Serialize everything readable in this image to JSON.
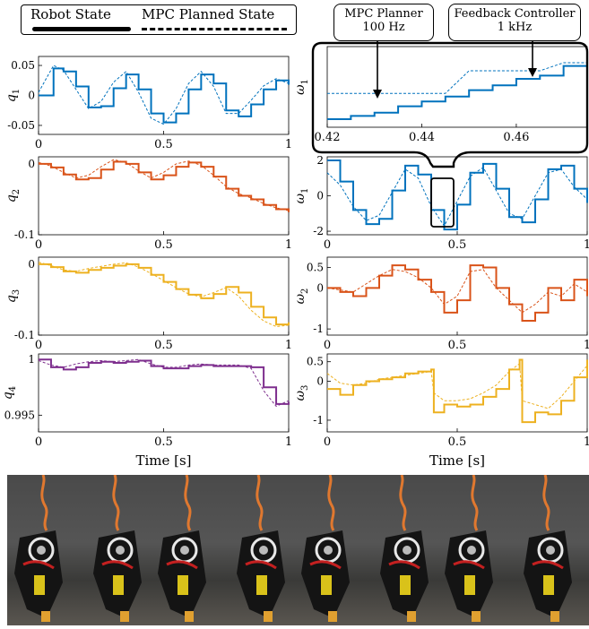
{
  "legend": {
    "robot_state": "Robot State",
    "mpc_planned_state": "MPC Planned State"
  },
  "callouts": {
    "mpc_planner": {
      "line1": "MPC Planner",
      "line2": "100 Hz"
    },
    "feedback_controller": {
      "line1": "Feedback Controller",
      "line2": "1 kHz"
    }
  },
  "colors": {
    "blue": "#0072BD",
    "orange": "#D95319",
    "yellow": "#EDB120",
    "purple": "#7E2F8E"
  },
  "chart_data": [
    {
      "id": "q1",
      "type": "line",
      "ylabel": "q_1",
      "color": "blue",
      "xlim": [
        0,
        1
      ],
      "ylim": [
        -0.065,
        0.065
      ],
      "xticks": [
        "0",
        "0.5",
        "1"
      ],
      "yticks": [
        {
          "v": 0.05,
          "t": "0.05"
        },
        {
          "v": 0,
          "t": "0"
        },
        {
          "v": -0.05,
          "t": "-0.05"
        }
      ],
      "xlabel": "",
      "x": [
        0,
        0.06,
        0.1,
        0.15,
        0.2,
        0.25,
        0.3,
        0.35,
        0.4,
        0.45,
        0.5,
        0.55,
        0.6,
        0.65,
        0.7,
        0.75,
        0.8,
        0.85,
        0.9,
        0.95,
        1.0
      ],
      "series": [
        {
          "name": "Robot State",
          "values": [
            0.0,
            0.045,
            0.04,
            0.015,
            -0.02,
            -0.018,
            0.012,
            0.035,
            0.01,
            -0.03,
            -0.045,
            -0.03,
            0.01,
            0.035,
            0.02,
            -0.025,
            -0.035,
            -0.015,
            0.01,
            0.025,
            0.018
          ]
        },
        {
          "name": "MPC Planned State",
          "values": [
            0.005,
            0.05,
            0.042,
            0.01,
            -0.022,
            -0.01,
            0.022,
            0.04,
            0.005,
            -0.038,
            -0.048,
            -0.022,
            0.02,
            0.04,
            0.015,
            -0.03,
            -0.03,
            -0.008,
            0.016,
            0.028,
            0.02
          ]
        }
      ]
    },
    {
      "id": "q2",
      "type": "line",
      "ylabel": "q_2",
      "color": "orange",
      "xlim": [
        0,
        1
      ],
      "ylim": [
        -0.1,
        0.01
      ],
      "xticks": [
        "0",
        "0.5",
        "1"
      ],
      "yticks": [
        {
          "v": 0,
          "t": "0"
        },
        {
          "v": -0.1,
          "t": "-0.1"
        }
      ],
      "xlabel": "",
      "x": [
        0,
        0.05,
        0.1,
        0.15,
        0.2,
        0.25,
        0.3,
        0.35,
        0.4,
        0.45,
        0.5,
        0.55,
        0.6,
        0.65,
        0.7,
        0.75,
        0.8,
        0.85,
        0.9,
        0.95,
        1.0
      ],
      "series": [
        {
          "name": "Robot State",
          "values": [
            0.0,
            -0.005,
            -0.015,
            -0.022,
            -0.02,
            -0.008,
            0.003,
            0.0,
            -0.012,
            -0.022,
            -0.016,
            -0.004,
            0.002,
            -0.004,
            -0.018,
            -0.035,
            -0.045,
            -0.05,
            -0.058,
            -0.064,
            -0.068
          ]
        },
        {
          "name": "MPC Planned State",
          "values": [
            0.002,
            -0.003,
            -0.012,
            -0.02,
            -0.016,
            -0.004,
            0.006,
            0.002,
            -0.01,
            -0.02,
            -0.012,
            0.0,
            0.004,
            -0.002,
            -0.016,
            -0.032,
            -0.042,
            -0.048,
            -0.056,
            -0.062,
            -0.066
          ]
        }
      ]
    },
    {
      "id": "q3",
      "type": "line",
      "ylabel": "q_3",
      "color": "yellow",
      "xlim": [
        0,
        1
      ],
      "ylim": [
        -0.1,
        0.01
      ],
      "xticks": [
        "0",
        "0.5",
        "1"
      ],
      "yticks": [
        {
          "v": 0,
          "t": "0"
        },
        {
          "v": -0.1,
          "t": "-0.1"
        }
      ],
      "xlabel": "",
      "x": [
        0,
        0.05,
        0.1,
        0.15,
        0.2,
        0.25,
        0.3,
        0.35,
        0.4,
        0.45,
        0.5,
        0.55,
        0.6,
        0.65,
        0.7,
        0.75,
        0.8,
        0.85,
        0.9,
        0.95,
        1.0
      ],
      "series": [
        {
          "name": "Robot State",
          "values": [
            0.0,
            -0.004,
            -0.01,
            -0.012,
            -0.008,
            -0.005,
            -0.002,
            0.0,
            -0.005,
            -0.015,
            -0.025,
            -0.035,
            -0.043,
            -0.048,
            -0.042,
            -0.032,
            -0.04,
            -0.06,
            -0.075,
            -0.085,
            -0.082
          ]
        },
        {
          "name": "MPC Planned State",
          "values": [
            0.003,
            -0.002,
            -0.008,
            -0.01,
            -0.006,
            -0.003,
            0.0,
            0.002,
            -0.004,
            -0.013,
            -0.023,
            -0.033,
            -0.042,
            -0.046,
            -0.04,
            -0.033,
            -0.045,
            -0.065,
            -0.08,
            -0.088,
            -0.086
          ]
        }
      ]
    },
    {
      "id": "q4",
      "type": "line",
      "ylabel": "q_4",
      "color": "purple",
      "xlim": [
        0,
        1
      ],
      "ylim": [
        0.9935,
        1.0005
      ],
      "xticks": [
        "0",
        "0.5",
        "1"
      ],
      "yticks": [
        {
          "v": 1.0,
          "t": "1"
        },
        {
          "v": 0.995,
          "t": "0.995"
        }
      ],
      "xlabel": "Time [s]",
      "x": [
        0,
        0.05,
        0.1,
        0.15,
        0.2,
        0.25,
        0.3,
        0.35,
        0.4,
        0.45,
        0.5,
        0.55,
        0.6,
        0.65,
        0.7,
        0.75,
        0.8,
        0.85,
        0.9,
        0.95,
        1.0
      ],
      "series": [
        {
          "name": "Robot State",
          "values": [
            1.0,
            0.9993,
            0.9991,
            0.9993,
            0.9997,
            0.9998,
            0.9997,
            0.9998,
            0.9999,
            0.9994,
            0.9992,
            0.9992,
            0.9994,
            0.9995,
            0.9994,
            0.9994,
            0.9994,
            0.9993,
            0.9975,
            0.996,
            0.9962
          ]
        },
        {
          "name": "MPC Planned State",
          "values": [
            0.9999,
            0.9995,
            0.9993,
            0.9996,
            0.9998,
            0.9999,
            0.9998,
            0.9999,
            1.0,
            0.9996,
            0.9993,
            0.9993,
            0.9995,
            0.9996,
            0.9995,
            0.9995,
            0.9995,
            0.9992,
            0.9972,
            0.9958,
            0.9963
          ]
        }
      ]
    },
    {
      "id": "w1",
      "type": "line",
      "ylabel": "ω_1",
      "color": "blue",
      "xlim": [
        0,
        1
      ],
      "ylim": [
        -2.2,
        2.2
      ],
      "xticks": [
        "0",
        "0.5",
        "1"
      ],
      "yticks": [
        {
          "v": 2,
          "t": "2"
        },
        {
          "v": 0,
          "t": "0"
        },
        {
          "v": -2,
          "t": "-2"
        }
      ],
      "xlabel": "",
      "x": [
        0,
        0.05,
        0.1,
        0.15,
        0.2,
        0.25,
        0.3,
        0.35,
        0.4,
        0.45,
        0.5,
        0.55,
        0.6,
        0.65,
        0.7,
        0.75,
        0.8,
        0.85,
        0.9,
        0.95,
        1.0
      ],
      "series": [
        {
          "name": "Robot State",
          "values": [
            2.0,
            0.8,
            -0.8,
            -1.6,
            -1.3,
            0.3,
            1.7,
            1.2,
            -0.8,
            -1.9,
            -0.5,
            1.3,
            1.8,
            0.4,
            -1.2,
            -1.5,
            -0.2,
            1.5,
            1.7,
            0.4,
            -0.4
          ]
        },
        {
          "name": "MPC Planned State",
          "values": [
            1.3,
            0.6,
            -0.6,
            -1.4,
            -1.1,
            0.2,
            1.5,
            1.0,
            -0.6,
            -1.7,
            -0.3,
            1.1,
            1.6,
            0.3,
            -1.0,
            -1.3,
            0.0,
            1.3,
            1.5,
            0.5,
            -0.2
          ]
        }
      ]
    },
    {
      "id": "w2",
      "type": "line",
      "ylabel": "ω_2",
      "color": "orange",
      "xlim": [
        0,
        1
      ],
      "ylim": [
        -1.15,
        0.75
      ],
      "xticks": [
        "0",
        "0.5",
        "1"
      ],
      "yticks": [
        {
          "v": 0.5,
          "t": "0.5"
        },
        {
          "v": 0,
          "t": "0"
        },
        {
          "v": -1,
          "t": "-1"
        }
      ],
      "xlabel": "",
      "x": [
        0,
        0.05,
        0.1,
        0.15,
        0.2,
        0.25,
        0.3,
        0.35,
        0.4,
        0.45,
        0.5,
        0.55,
        0.6,
        0.65,
        0.7,
        0.75,
        0.8,
        0.85,
        0.9,
        0.95,
        1.0
      ],
      "series": [
        {
          "name": "Robot State",
          "values": [
            0.0,
            -0.1,
            -0.2,
            0.0,
            0.3,
            0.55,
            0.45,
            0.2,
            -0.1,
            -0.6,
            -0.3,
            0.55,
            0.5,
            0.0,
            -0.4,
            -0.8,
            -0.6,
            0.0,
            -0.3,
            0.2,
            -0.2
          ]
        },
        {
          "name": "MPC Planned State",
          "values": [
            0.0,
            -0.05,
            -0.1,
            0.1,
            0.3,
            0.45,
            0.4,
            0.25,
            0.0,
            -0.4,
            -0.2,
            0.4,
            0.45,
            0.0,
            -0.3,
            -0.6,
            -0.4,
            -0.1,
            -0.2,
            0.1,
            -0.1
          ]
        }
      ]
    },
    {
      "id": "w3",
      "type": "line",
      "ylabel": "ω_3",
      "color": "yellow",
      "xlim": [
        0,
        1
      ],
      "ylim": [
        -1.3,
        0.7
      ],
      "xticks": [
        "0",
        "0.5",
        "1"
      ],
      "yticks": [
        {
          "v": 0.5,
          "t": "0.5"
        },
        {
          "v": 0,
          "t": "0"
        },
        {
          "v": -1,
          "t": "-1"
        }
      ],
      "xlabel": "Time [s]",
      "x": [
        0,
        0.05,
        0.1,
        0.15,
        0.2,
        0.25,
        0.3,
        0.35,
        0.4,
        0.41,
        0.45,
        0.5,
        0.55,
        0.6,
        0.65,
        0.7,
        0.74,
        0.75,
        0.8,
        0.85,
        0.9,
        0.95,
        1.0
      ],
      "series": [
        {
          "name": "Robot State",
          "values": [
            -0.2,
            -0.35,
            -0.1,
            0.0,
            0.05,
            0.1,
            0.2,
            0.25,
            0.3,
            -0.8,
            -0.6,
            -0.65,
            -0.6,
            -0.4,
            -0.2,
            0.3,
            0.55,
            -1.05,
            -0.8,
            -0.85,
            -0.5,
            0.1,
            0.55
          ]
        },
        {
          "name": "MPC Planned State",
          "values": [
            0.2,
            -0.05,
            -0.1,
            -0.05,
            0.05,
            0.1,
            0.15,
            0.2,
            0.25,
            -0.3,
            -0.5,
            -0.5,
            -0.45,
            -0.3,
            -0.1,
            0.25,
            0.45,
            -0.5,
            -0.6,
            -0.7,
            -0.4,
            0.0,
            0.4
          ]
        }
      ]
    },
    {
      "id": "w1_zoom",
      "type": "line",
      "ylabel": "ω_1",
      "color": "blue",
      "xlim": [
        0.42,
        0.475
      ],
      "ylim": [
        -1.95,
        -1.45
      ],
      "xticks": [
        "0.42",
        "0.44",
        "0.46"
      ],
      "xtick_values": [
        0.42,
        0.44,
        0.46
      ],
      "yticks": [],
      "xlabel": "",
      "x": [
        0.42,
        0.425,
        0.43,
        0.435,
        0.44,
        0.445,
        0.45,
        0.455,
        0.46,
        0.465,
        0.47,
        0.475
      ],
      "series": [
        {
          "name": "Robot State",
          "values": [
            -1.9,
            -1.88,
            -1.86,
            -1.82,
            -1.79,
            -1.76,
            -1.72,
            -1.69,
            -1.65,
            -1.63,
            -1.57,
            -1.52
          ]
        },
        {
          "name": "MPC Planned State",
          "values": [
            -1.74,
            -1.74,
            -1.74,
            -1.74,
            -1.74,
            -1.74,
            -1.6,
            -1.6,
            -1.6,
            -1.6,
            -1.55,
            -1.55
          ]
        }
      ]
    }
  ]
}
